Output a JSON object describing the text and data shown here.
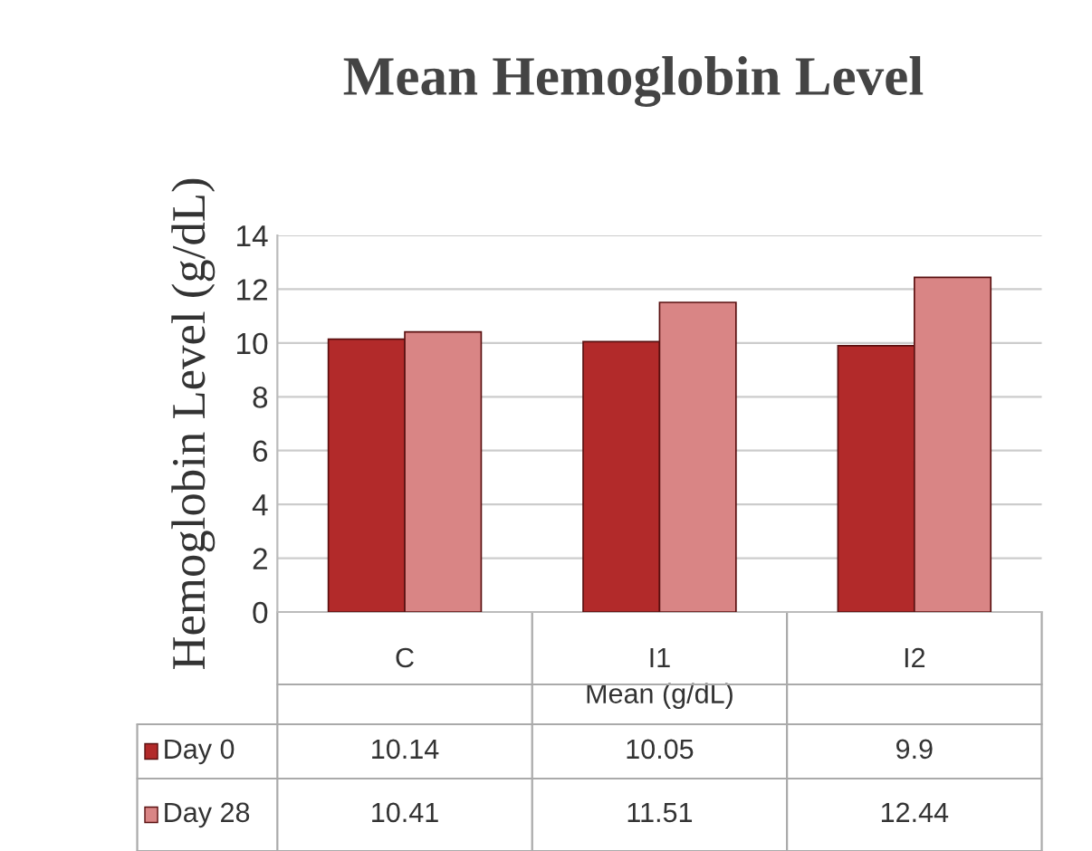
{
  "chart_data": {
    "type": "bar",
    "title": "Mean Hemoglobin Level",
    "ylabel": "Hemoglobin Level (g/dL)",
    "xlabel": "Mean (g/dL)",
    "categories": [
      "C",
      "I1",
      "I2"
    ],
    "series": [
      {
        "name": "Day 0",
        "color": "#b22a2a",
        "values": [
          10.14,
          10.05,
          9.9
        ]
      },
      {
        "name": "Day 28",
        "color": "#d98585",
        "values": [
          10.41,
          11.51,
          12.44
        ]
      }
    ],
    "ylim": [
      0,
      14
    ],
    "yticks": [
      0,
      2,
      4,
      6,
      8,
      10,
      12,
      14
    ],
    "grid": "y",
    "data_labels": true,
    "legend": "bottom"
  }
}
